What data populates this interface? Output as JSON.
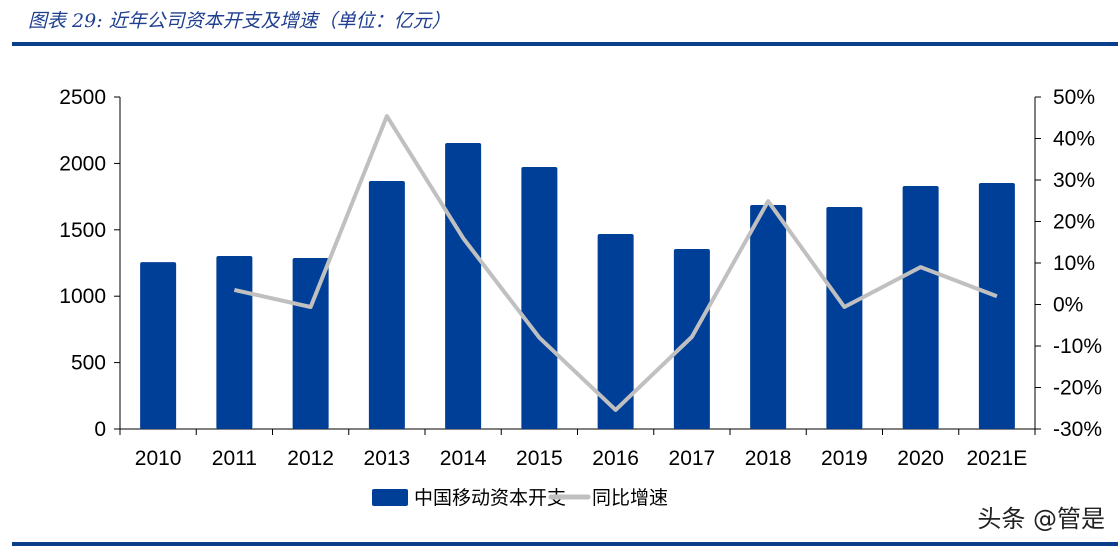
{
  "title": "图表 29:  近年公司资本开支及增速（单位：亿元）",
  "watermark": "头条 @管是",
  "chart_data": {
    "type": "bar+line",
    "title": "近年公司资本开支及增速（单位：亿元）",
    "categories": [
      "2010",
      "2011",
      "2012",
      "2013",
      "2014",
      "2015",
      "2016",
      "2017",
      "2018",
      "2019",
      "2020",
      "2021E"
    ],
    "series": [
      {
        "name": "中国移动资本开支",
        "type": "bar",
        "axis": "left",
        "color": "#003f98",
        "values": [
          1257,
          1303,
          1288,
          1867,
          2154,
          1973,
          1468,
          1355,
          1687,
          1672,
          1830,
          1852
        ]
      },
      {
        "name": "同比增速",
        "type": "line",
        "axis": "right",
        "color": "#c0c0c0",
        "values": [
          null,
          3.5,
          -0.6,
          45.4,
          16.0,
          -8.0,
          -25.4,
          -7.8,
          24.9,
          -0.6,
          9.0,
          2.0
        ]
      }
    ],
    "left_axis": {
      "ylim": [
        0,
        2500
      ],
      "ticks": [
        "0",
        "500",
        "1000",
        "1500",
        "2000",
        "2500"
      ]
    },
    "right_axis": {
      "ylim": [
        -30,
        50
      ],
      "ticks": [
        "-30%",
        "-20%",
        "-10%",
        "0%",
        "10%",
        "20%",
        "30%",
        "40%",
        "50%"
      ]
    },
    "grid": false,
    "legend": "bottom"
  }
}
